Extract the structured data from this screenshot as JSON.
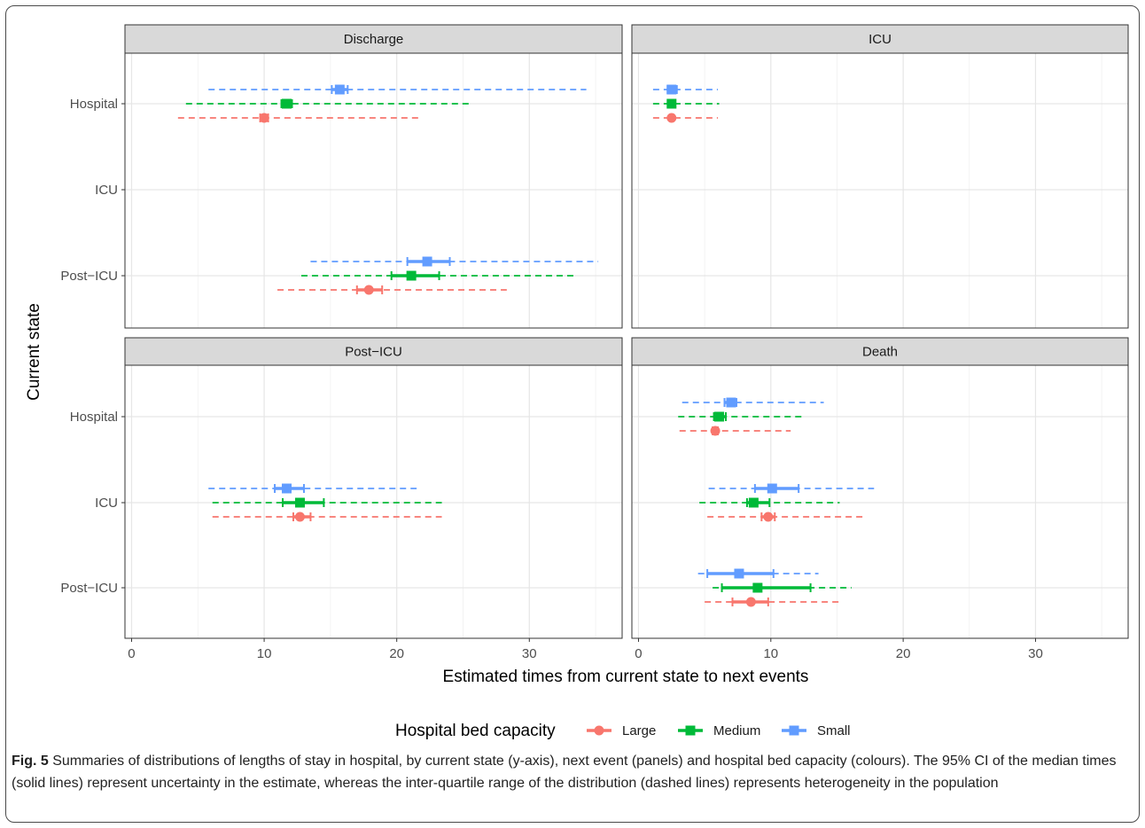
{
  "chart_data": {
    "type": "scatter",
    "xlabel": "Estimated times from current state to next events",
    "ylabel": "Current state",
    "xlim": [
      -0.5,
      37
    ],
    "x_ticks": [
      0,
      10,
      20,
      30
    ],
    "y_categories": [
      "Hospital",
      "ICU",
      "Post−ICU"
    ],
    "grid": true,
    "legend": {
      "title": "Hospital bed capacity",
      "position": "bottom",
      "entries": [
        {
          "name": "Large",
          "color": "#f8766d"
        },
        {
          "name": "Medium",
          "color": "#00ba38"
        },
        {
          "name": "Small",
          "color": "#619cff"
        }
      ]
    },
    "panels": [
      {
        "title": "Discharge",
        "points": [
          {
            "state": "Hospital",
            "group": "Large",
            "median": 10.0,
            "ci": [
              9.7,
              10.3
            ],
            "iqr": [
              3.5,
              21.8
            ]
          },
          {
            "state": "Hospital",
            "group": "Medium",
            "median": 11.7,
            "ci": [
              11.3,
              12.1
            ],
            "iqr": [
              4.1,
              25.5
            ]
          },
          {
            "state": "Hospital",
            "group": "Small",
            "median": 15.7,
            "ci": [
              15.1,
              16.3
            ],
            "iqr": [
              5.8,
              34.3
            ]
          },
          {
            "state": "Post−ICU",
            "group": "Large",
            "median": 17.9,
            "ci": [
              17.0,
              18.9
            ],
            "iqr": [
              11.0,
              28.3
            ]
          },
          {
            "state": "Post−ICU",
            "group": "Medium",
            "median": 21.1,
            "ci": [
              19.6,
              23.2
            ],
            "iqr": [
              12.8,
              33.4
            ]
          },
          {
            "state": "Post−ICU",
            "group": "Small",
            "median": 22.3,
            "ci": [
              20.8,
              24.0
            ],
            "iqr": [
              13.5,
              35.2
            ]
          }
        ]
      },
      {
        "title": "ICU",
        "points": [
          {
            "state": "Hospital",
            "group": "Large",
            "median": 2.5,
            "ci": [
              2.4,
              2.6
            ],
            "iqr": [
              1.1,
              6.0
            ]
          },
          {
            "state": "Hospital",
            "group": "Medium",
            "median": 2.5,
            "ci": [
              2.3,
              2.7
            ],
            "iqr": [
              1.1,
              6.1
            ]
          },
          {
            "state": "Hospital",
            "group": "Small",
            "median": 2.5,
            "ci": [
              2.2,
              2.9
            ],
            "iqr": [
              1.1,
              6.0
            ]
          }
        ]
      },
      {
        "title": "Post−ICU",
        "points": [
          {
            "state": "ICU",
            "group": "Large",
            "median": 12.7,
            "ci": [
              12.2,
              13.5
            ],
            "iqr": [
              6.1,
              23.4
            ]
          },
          {
            "state": "ICU",
            "group": "Medium",
            "median": 12.7,
            "ci": [
              11.4,
              14.5
            ],
            "iqr": [
              6.1,
              23.4
            ]
          },
          {
            "state": "ICU",
            "group": "Small",
            "median": 11.7,
            "ci": [
              10.8,
              13.0
            ],
            "iqr": [
              5.8,
              21.5
            ]
          }
        ]
      },
      {
        "title": "Death",
        "points": [
          {
            "state": "Hospital",
            "group": "Large",
            "median": 5.8,
            "ci": [
              5.6,
              6.0
            ],
            "iqr": [
              3.1,
              11.5
            ]
          },
          {
            "state": "Hospital",
            "group": "Medium",
            "median": 6.1,
            "ci": [
              5.7,
              6.6
            ],
            "iqr": [
              3.0,
              12.4
            ]
          },
          {
            "state": "Hospital",
            "group": "Small",
            "median": 7.0,
            "ci": [
              6.5,
              7.4
            ],
            "iqr": [
              3.3,
              14.0
            ]
          },
          {
            "state": "ICU",
            "group": "Large",
            "median": 9.8,
            "ci": [
              9.3,
              10.3
            ],
            "iqr": [
              5.2,
              17.0
            ]
          },
          {
            "state": "ICU",
            "group": "Medium",
            "median": 8.7,
            "ci": [
              8.2,
              9.9
            ],
            "iqr": [
              4.6,
              15.2
            ]
          },
          {
            "state": "ICU",
            "group": "Small",
            "median": 10.1,
            "ci": [
              8.8,
              12.1
            ],
            "iqr": [
              5.3,
              17.8
            ]
          },
          {
            "state": "Post−ICU",
            "group": "Large",
            "median": 8.5,
            "ci": [
              7.1,
              9.8
            ],
            "iqr": [
              5.0,
              15.3
            ]
          },
          {
            "state": "Post−ICU",
            "group": "Medium",
            "median": 9.0,
            "ci": [
              6.3,
              13.0
            ],
            "iqr": [
              5.6,
              16.1
            ]
          },
          {
            "state": "Post−ICU",
            "group": "Small",
            "median": 7.6,
            "ci": [
              5.2,
              10.2
            ],
            "iqr": [
              4.5,
              13.6
            ]
          }
        ]
      }
    ]
  },
  "caption": {
    "label": "Fig. 5",
    "text": " Summaries of distributions of lengths of stay in hospital, by current state (y-axis), next event (panels) and hospital bed capacity (colours). The 95% CI of the median times (solid lines) represent uncertainty in the estimate, whereas the inter-quartile range of the distribution (dashed lines) represents heterogeneity in the population"
  }
}
